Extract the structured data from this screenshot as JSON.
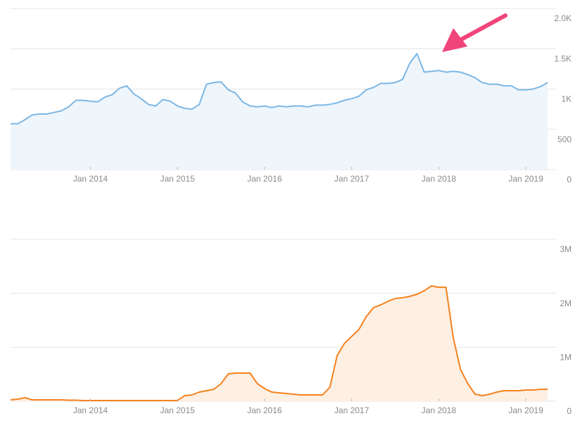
{
  "chart_data": [
    {
      "type": "area",
      "color": "#7db7e4",
      "fill_color": "#eef5fb",
      "x": [
        "2013-02",
        "2013-03",
        "2013-04",
        "2013-05",
        "2013-06",
        "2013-07",
        "2013-08",
        "2013-09",
        "2013-10",
        "2013-11",
        "2013-12",
        "2014-01",
        "2014-02",
        "2014-03",
        "2014-04",
        "2014-05",
        "2014-06",
        "2014-07",
        "2014-08",
        "2014-09",
        "2014-10",
        "2014-11",
        "2014-12",
        "2015-01",
        "2015-02",
        "2015-03",
        "2015-04",
        "2015-05",
        "2015-06",
        "2015-07",
        "2015-08",
        "2015-09",
        "2015-10",
        "2015-11",
        "2015-12",
        "2016-01",
        "2016-02",
        "2016-03",
        "2016-04",
        "2016-05",
        "2016-06",
        "2016-07",
        "2016-08",
        "2016-09",
        "2016-10",
        "2016-11",
        "2016-12",
        "2017-01",
        "2017-02",
        "2017-03",
        "2017-04",
        "2017-05",
        "2017-06",
        "2017-07",
        "2017-08",
        "2017-09",
        "2017-10",
        "2017-11",
        "2017-12",
        "2018-01",
        "2018-02",
        "2018-03",
        "2018-04",
        "2018-05",
        "2018-06",
        "2018-07",
        "2018-08",
        "2018-09",
        "2018-10",
        "2018-11",
        "2018-12",
        "2019-01",
        "2019-02",
        "2019-03",
        "2019-04"
      ],
      "values": [
        570,
        570,
        620,
        680,
        690,
        690,
        710,
        730,
        780,
        860,
        860,
        850,
        840,
        900,
        930,
        1010,
        1040,
        940,
        880,
        810,
        790,
        870,
        850,
        790,
        760,
        750,
        810,
        1060,
        1080,
        1090,
        990,
        950,
        840,
        790,
        780,
        790,
        770,
        790,
        780,
        790,
        790,
        780,
        800,
        800,
        810,
        830,
        860,
        880,
        910,
        990,
        1020,
        1070,
        1070,
        1080,
        1120,
        1320,
        1440,
        1210,
        1220,
        1230,
        1210,
        1220,
        1210,
        1180,
        1140,
        1080,
        1060,
        1060,
        1040,
        1040,
        990,
        990,
        1000,
        1030,
        1080
      ],
      "xlim": [
        "2013-02",
        "2019-04"
      ],
      "xticks": [
        {
          "value": "2014-01",
          "label": "Jan 2014"
        },
        {
          "value": "2015-01",
          "label": "Jan 2015"
        },
        {
          "value": "2016-01",
          "label": "Jan 2016"
        },
        {
          "value": "2017-01",
          "label": "Jan 2017"
        },
        {
          "value": "2018-01",
          "label": "Jan 2018"
        },
        {
          "value": "2019-01",
          "label": "Jan 2019"
        }
      ],
      "ylim": [
        0,
        2000
      ],
      "yticks": [
        0,
        500,
        {
          "value": 1000,
          "label": "1K"
        },
        {
          "value": 1500,
          "label": "1.5K"
        },
        {
          "value": 2000,
          "label": "2.0K"
        }
      ],
      "grid": true
    },
    {
      "type": "area",
      "color": "#f5821f",
      "fill_color": "#fdefe2",
      "x": [
        "2013-02",
        "2013-03",
        "2013-04",
        "2013-05",
        "2013-06",
        "2013-07",
        "2013-08",
        "2013-09",
        "2013-10",
        "2013-11",
        "2013-12",
        "2014-01",
        "2014-02",
        "2014-03",
        "2014-04",
        "2014-05",
        "2014-06",
        "2014-07",
        "2014-08",
        "2014-09",
        "2014-10",
        "2014-11",
        "2014-12",
        "2015-01",
        "2015-02",
        "2015-03",
        "2015-04",
        "2015-05",
        "2015-06",
        "2015-07",
        "2015-08",
        "2015-09",
        "2015-10",
        "2015-11",
        "2015-12",
        "2016-01",
        "2016-02",
        "2016-03",
        "2016-04",
        "2016-05",
        "2016-06",
        "2016-07",
        "2016-08",
        "2016-09",
        "2016-10",
        "2016-11",
        "2016-12",
        "2017-01",
        "2017-02",
        "2017-03",
        "2017-04",
        "2017-05",
        "2017-06",
        "2017-07",
        "2017-08",
        "2017-09",
        "2017-10",
        "2017-11",
        "2017-12",
        "2018-01",
        "2018-02",
        "2018-03",
        "2018-04",
        "2018-05",
        "2018-06",
        "2018-07",
        "2018-08",
        "2018-09",
        "2018-10",
        "2018-11",
        "2018-12",
        "2019-01",
        "2019-02",
        "2019-03",
        "2019-04"
      ],
      "values": [
        26000,
        39000,
        65000,
        26000,
        26000,
        26000,
        26000,
        26000,
        20000,
        20000,
        13000,
        13000,
        13000,
        13000,
        13000,
        13000,
        13000,
        13000,
        13000,
        13000,
        13000,
        13000,
        13000,
        13000,
        104000,
        117000,
        170000,
        196000,
        222000,
        326000,
        508000,
        522000,
        522000,
        522000,
        326000,
        235000,
        170000,
        156000,
        143000,
        130000,
        117000,
        117000,
        117000,
        117000,
        261000,
        848000,
        1069000,
        1200000,
        1330000,
        1565000,
        1734000,
        1786000,
        1851000,
        1904000,
        1917000,
        1943000,
        1982000,
        2047000,
        2138000,
        2112000,
        2112000,
        1173000,
        587000,
        326000,
        130000,
        104000,
        130000,
        170000,
        196000,
        196000,
        196000,
        209000,
        209000,
        222000,
        222000
      ],
      "xlim": [
        "2013-02",
        "2019-04"
      ],
      "xticks": [
        {
          "value": "2014-01",
          "label": "Jan 2014"
        },
        {
          "value": "2015-01",
          "label": "Jan 2015"
        },
        {
          "value": "2016-01",
          "label": "Jan 2016"
        },
        {
          "value": "2017-01",
          "label": "Jan 2017"
        },
        {
          "value": "2018-01",
          "label": "Jan 2018"
        },
        {
          "value": "2019-01",
          "label": "Jan 2019"
        }
      ],
      "ylim": [
        0,
        3000000
      ],
      "yticks": [
        0,
        {
          "value": 1000000,
          "label": "1M"
        },
        {
          "value": 2000000,
          "label": "2M"
        },
        {
          "value": 3000000,
          "label": "3M"
        }
      ],
      "grid": true
    }
  ]
}
